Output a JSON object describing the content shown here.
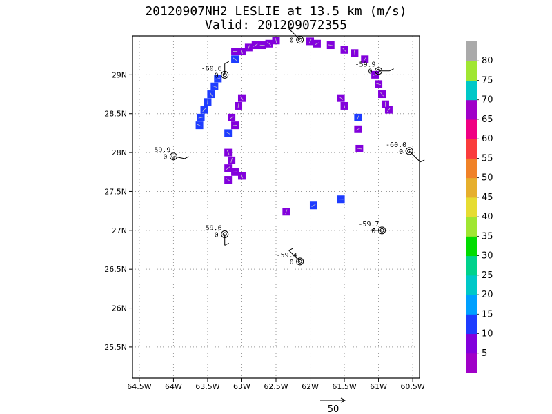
{
  "chart_data": {
    "type": "heatmap",
    "title": "20120907NH2 LESLIE at 13.5 km (m/s)",
    "subtitle": "Valid: 201209072355",
    "x_ticks": [
      "64.5W",
      "64W",
      "63.5W",
      "63W",
      "62.5W",
      "62W",
      "61.5W",
      "61W",
      "60.5W"
    ],
    "y_ticks": [
      "25.5N",
      "26N",
      "26.5N",
      "27N",
      "27.5N",
      "28N",
      "28.5N",
      "29N"
    ],
    "xlim": [
      -64.6,
      -60.4
    ],
    "ylim": [
      25.1,
      29.5
    ],
    "grid": true,
    "colorbar_labels": [
      "5",
      "10",
      "15",
      "20",
      "25",
      "30",
      "35",
      "40",
      "45",
      "50",
      "55",
      "60",
      "65",
      "70",
      "75",
      "80"
    ],
    "colorbar_colors": [
      "#a000c8",
      "#8200dc",
      "#1e3cff",
      "#00a0ff",
      "#00c8c8",
      "#00d28c",
      "#00dc00",
      "#a0e632",
      "#e6dc32",
      "#e6af2d",
      "#f08228",
      "#fa3c3c",
      "#f00082",
      "#a000c8",
      "#00c8c8",
      "#a0e632",
      "#aaaaaa"
    ],
    "vector_key": "50",
    "cells": [
      {
        "lon": -63.1,
        "lat": 29.3,
        "v": 9
      },
      {
        "lon": -63.1,
        "lat": 29.2,
        "v": 12
      },
      {
        "lon": -63.0,
        "lat": 29.3,
        "v": 8
      },
      {
        "lon": -62.9,
        "lat": 29.35,
        "v": 7
      },
      {
        "lon": -62.8,
        "lat": 29.38,
        "v": 7
      },
      {
        "lon": -62.7,
        "lat": 29.38,
        "v": 7
      },
      {
        "lon": -62.6,
        "lat": 29.4,
        "v": 7
      },
      {
        "lon": -62.5,
        "lat": 29.44,
        "v": 7
      },
      {
        "lon": -62.0,
        "lat": 29.43,
        "v": 6
      },
      {
        "lon": -61.9,
        "lat": 29.4,
        "v": 6
      },
      {
        "lon": -61.7,
        "lat": 29.38,
        "v": 7
      },
      {
        "lon": -61.5,
        "lat": 29.32,
        "v": 7
      },
      {
        "lon": -61.35,
        "lat": 29.28,
        "v": 7
      },
      {
        "lon": -61.2,
        "lat": 29.2,
        "v": 7
      },
      {
        "lon": -61.05,
        "lat": 29.0,
        "v": 7
      },
      {
        "lon": -61.0,
        "lat": 28.88,
        "v": 7
      },
      {
        "lon": -60.95,
        "lat": 28.75,
        "v": 7
      },
      {
        "lon": -60.9,
        "lat": 28.62,
        "v": 7
      },
      {
        "lon": -60.85,
        "lat": 28.55,
        "v": 6
      },
      {
        "lon": -63.35,
        "lat": 28.95,
        "v": 12
      },
      {
        "lon": -63.4,
        "lat": 28.85,
        "v": 12
      },
      {
        "lon": -63.45,
        "lat": 28.75,
        "v": 12
      },
      {
        "lon": -63.5,
        "lat": 28.65,
        "v": 12
      },
      {
        "lon": -63.55,
        "lat": 28.55,
        "v": 12
      },
      {
        "lon": -63.6,
        "lat": 28.45,
        "v": 12
      },
      {
        "lon": -63.62,
        "lat": 28.35,
        "v": 12
      },
      {
        "lon": -63.0,
        "lat": 28.7,
        "v": 8
      },
      {
        "lon": -63.05,
        "lat": 28.6,
        "v": 8
      },
      {
        "lon": -63.15,
        "lat": 28.45,
        "v": 8
      },
      {
        "lon": -63.1,
        "lat": 28.35,
        "v": 9
      },
      {
        "lon": -63.2,
        "lat": 28.25,
        "v": 11
      },
      {
        "lon": -63.2,
        "lat": 28.0,
        "v": 8
      },
      {
        "lon": -63.15,
        "lat": 27.9,
        "v": 8
      },
      {
        "lon": -63.2,
        "lat": 27.8,
        "v": 8
      },
      {
        "lon": -63.1,
        "lat": 27.75,
        "v": 9
      },
      {
        "lon": -63.2,
        "lat": 27.65,
        "v": 8
      },
      {
        "lon": -63.0,
        "lat": 27.7,
        "v": 8
      },
      {
        "lon": -62.35,
        "lat": 27.24,
        "v": 8
      },
      {
        "lon": -61.95,
        "lat": 27.32,
        "v": 12
      },
      {
        "lon": -61.55,
        "lat": 27.4,
        "v": 12
      },
      {
        "lon": -61.55,
        "lat": 28.7,
        "v": 8
      },
      {
        "lon": -61.5,
        "lat": 28.6,
        "v": 8
      },
      {
        "lon": -61.3,
        "lat": 28.45,
        "v": 10
      },
      {
        "lon": -61.3,
        "lat": 28.3,
        "v": 9
      },
      {
        "lon": -61.28,
        "lat": 28.05,
        "v": 7
      }
    ],
    "soundings": [
      {
        "lon": -63.25,
        "lat": 29.0,
        "label": "-60.6",
        "prefix": "0"
      },
      {
        "lon": -62.15,
        "lat": 29.45,
        "label": "",
        "prefix": "0"
      },
      {
        "lon": -61.0,
        "lat": 29.05,
        "label": "-59.9",
        "prefix": "0"
      },
      {
        "lon": -60.55,
        "lat": 28.02,
        "label": "-60.0",
        "prefix": "0"
      },
      {
        "lon": -64.0,
        "lat": 27.95,
        "label": "-59.9",
        "prefix": "0"
      },
      {
        "lon": -63.25,
        "lat": 26.95,
        "label": "-59.6",
        "prefix": "0"
      },
      {
        "lon": -62.15,
        "lat": 26.6,
        "label": "-59.4",
        "prefix": "0"
      },
      {
        "lon": -60.95,
        "lat": 27.0,
        "label": "-59.7",
        "prefix": "0"
      }
    ]
  }
}
